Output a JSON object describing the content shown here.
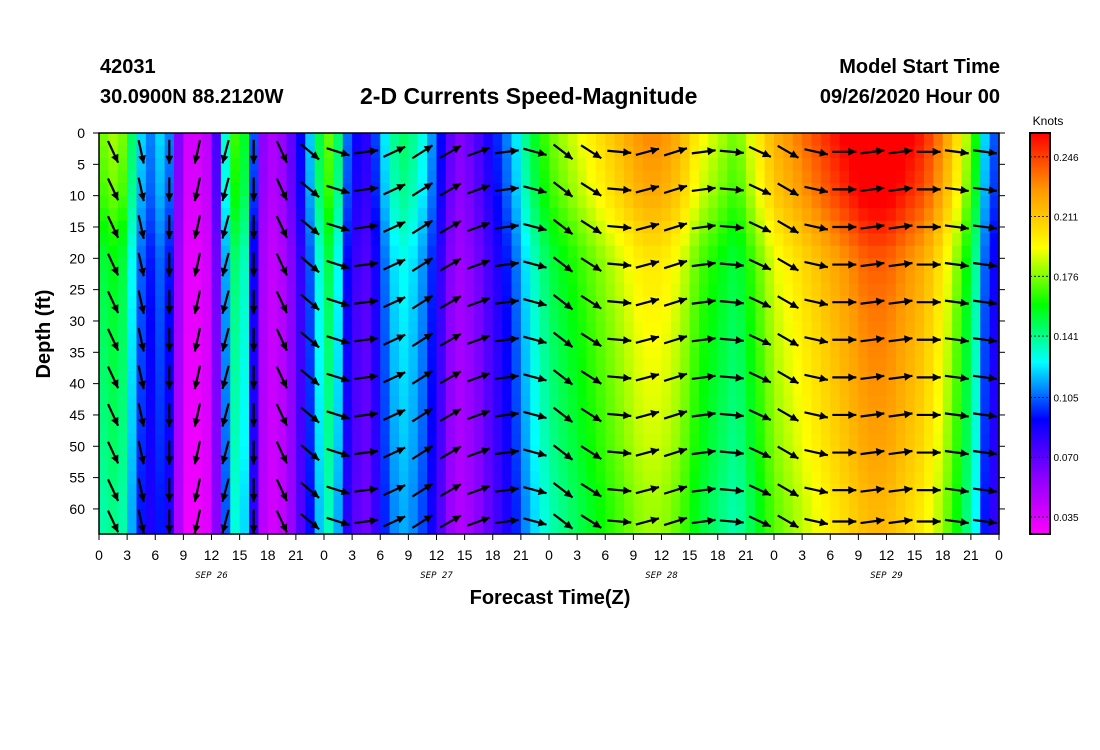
{
  "header": {
    "station_id": "42031",
    "coords": "30.0900N 88.2120W",
    "title": "2-D Currents Speed-Magnitude",
    "start_label": "Model Start Time",
    "start_value": "09/26/2020 Hour 00"
  },
  "chart_data": {
    "type": "heatmap",
    "title": "2-D Currents Speed-Magnitude",
    "xlabel": "Forecast Time(Z)",
    "ylabel": "Depth (ft)",
    "x_tick_labels": [
      "0",
      "3",
      "6",
      "9",
      "12",
      "15",
      "18",
      "21",
      "0",
      "3",
      "6",
      "9",
      "12",
      "15",
      "18",
      "21",
      "0",
      "3",
      "6",
      "9",
      "12",
      "15",
      "18",
      "21",
      "0",
      "3",
      "6",
      "9",
      "12",
      "15",
      "18",
      "21",
      "0"
    ],
    "x_date_labels": [
      {
        "label": "SEP 26",
        "hour": 12
      },
      {
        "label": "SEP 27",
        "hour": 36
      },
      {
        "label": "SEP 28",
        "hour": 60
      },
      {
        "label": "SEP 29",
        "hour": 84
      }
    ],
    "xlim_hours": [
      0,
      96
    ],
    "y_ticks": [
      0,
      5,
      10,
      15,
      20,
      25,
      30,
      35,
      40,
      45,
      50,
      55,
      60
    ],
    "ylim_ft": [
      0,
      64
    ],
    "colorbar": {
      "unit": "Knots",
      "ticks": [
        0.035,
        0.07,
        0.105,
        0.141,
        0.176,
        0.211,
        0.246
      ],
      "tick_labels": [
        "0.035",
        "0.070",
        "0.105",
        "0.141",
        "0.176",
        "0.211",
        "0.246"
      ],
      "range": [
        0.025,
        0.26
      ],
      "colors": [
        "#ff00ff",
        "#8a00ff",
        "#0000ff",
        "#00ffff",
        "#00ff00",
        "#ffff00",
        "#ff9900",
        "#ff0000"
      ]
    },
    "speed_profile_hours": [
      0,
      2,
      3,
      4,
      6,
      7,
      8,
      9,
      10,
      12,
      13,
      14,
      15,
      16,
      17,
      18,
      20,
      22,
      24,
      25,
      26,
      28,
      29,
      30,
      32,
      34,
      36,
      38,
      40,
      42,
      44,
      46,
      48,
      50,
      52,
      54,
      56,
      58,
      60,
      62,
      64,
      66,
      68,
      70,
      72,
      74,
      76,
      78,
      80,
      82,
      84,
      86,
      88,
      90,
      92,
      94,
      95,
      96
    ],
    "speed_profile_knots": [
      0.15,
      0.16,
      0.145,
      0.11,
      0.09,
      0.12,
      0.07,
      0.035,
      0.03,
      0.04,
      0.09,
      0.14,
      0.15,
      0.12,
      0.06,
      0.04,
      0.05,
      0.09,
      0.145,
      0.155,
      0.1,
      0.07,
      0.075,
      0.1,
      0.13,
      0.12,
      0.09,
      0.05,
      0.06,
      0.08,
      0.1,
      0.13,
      0.15,
      0.16,
      0.17,
      0.18,
      0.19,
      0.2,
      0.2,
      0.19,
      0.17,
      0.16,
      0.15,
      0.17,
      0.19,
      0.2,
      0.21,
      0.22,
      0.23,
      0.24,
      0.24,
      0.23,
      0.22,
      0.2,
      0.17,
      0.13,
      0.08,
      0.1
    ],
    "depth_profile_ft": [
      0,
      10,
      20,
      30,
      40,
      50,
      60,
      64
    ],
    "depth_factor": [
      1.15,
      1.1,
      1.0,
      0.97,
      0.95,
      0.93,
      0.9,
      0.9
    ],
    "vector_depths_ft": [
      3,
      9,
      15,
      21,
      27,
      33,
      39,
      45,
      51,
      57,
      62
    ],
    "vector_direction_profile_hours": [
      0,
      3,
      6,
      9,
      12,
      15,
      18,
      21,
      24,
      27,
      30,
      33,
      36,
      39,
      42,
      45,
      48,
      51,
      54,
      57,
      60,
      63,
      66,
      69,
      72,
      75,
      78,
      81,
      84,
      87,
      90,
      93,
      96
    ],
    "vector_direction_deg": [
      150,
      160,
      175,
      185,
      200,
      190,
      170,
      140,
      120,
      95,
      70,
      60,
      55,
      65,
      75,
      90,
      120,
      135,
      110,
      80,
      70,
      75,
      90,
      100,
      130,
      110,
      95,
      85,
      80,
      85,
      95,
      100,
      95
    ]
  }
}
